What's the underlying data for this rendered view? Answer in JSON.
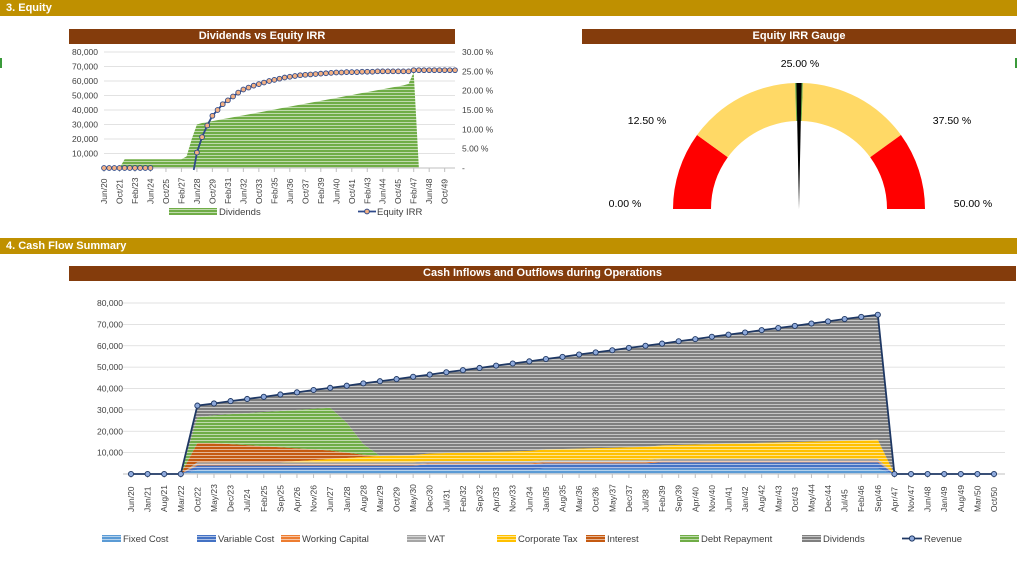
{
  "sections": {
    "equity": "3.  Equity",
    "cashflow": "4.  Cash Flow Summary"
  },
  "chart_data": [
    {
      "type": "bar+line",
      "title": "Dividends vs Equity IRR",
      "tick_labels": [
        "Jun/20",
        "Oct/21",
        "Feb/23",
        "Jun/24",
        "Oct/25",
        "Feb/27",
        "Jun/28",
        "Oct/29",
        "Feb/31",
        "Jun/32",
        "Oct/33",
        "Feb/35",
        "Jun/36",
        "Oct/37",
        "Feb/39",
        "Jun/40",
        "Oct/41",
        "Feb/43",
        "Jun/44",
        "Oct/45",
        "Feb/47",
        "Jun/48",
        "Oct/49"
      ],
      "points_per_tick": 3,
      "y_left": {
        "range": [
          0,
          80000
        ],
        "ticks": [
          "",
          "10,000",
          "20,000",
          "30,000",
          "40,000",
          "50,000",
          "60,000",
          "70,000",
          "80,000"
        ]
      },
      "y_right": {
        "range": [
          0,
          30
        ],
        "ticks": [
          "-",
          "5.00 %",
          "10.00 %",
          "15.00 %",
          "20.00 %",
          "25.00 %",
          "30.00 %"
        ]
      },
      "legend_position": "bottom",
      "series": [
        {
          "name": "Dividends",
          "kind": "area",
          "color": "#70ad47",
          "values": [
            0,
            0,
            0,
            0,
            6000,
            6000,
            6000,
            6000,
            6000,
            6000,
            6000,
            6000,
            6000,
            6000,
            6000,
            6000,
            8000,
            20000,
            30000,
            31000,
            31700,
            32300,
            33000,
            33700,
            34300,
            35000,
            35700,
            36300,
            37000,
            37700,
            38300,
            39000,
            39700,
            40300,
            41000,
            41700,
            42300,
            43000,
            43700,
            44300,
            45000,
            45700,
            46300,
            47000,
            47700,
            48300,
            49000,
            49700,
            50300,
            51000,
            51700,
            52300,
            53000,
            53700,
            54300,
            55000,
            55700,
            56300,
            57000,
            58000,
            66000,
            0,
            0,
            0,
            0,
            0,
            0,
            0,
            0
          ]
        },
        {
          "name": "Equity IRR",
          "kind": "line",
          "color": "#2f4a8a",
          "marker_color": "#f4b183",
          "values": [
            0,
            0,
            0,
            0,
            0,
            0,
            0,
            0,
            0,
            0,
            null,
            null,
            null,
            null,
            null,
            null,
            null,
            null,
            4,
            8,
            11,
            13.5,
            15,
            16.5,
            17.5,
            18.5,
            19.5,
            20.3,
            20.8,
            21.3,
            21.7,
            22.1,
            22.5,
            22.8,
            23.1,
            23.4,
            23.6,
            23.8,
            24.0,
            24.1,
            24.2,
            24.3,
            24.4,
            24.5,
            24.6,
            24.7,
            24.7,
            24.8,
            24.8,
            24.8,
            24.9,
            24.9,
            24.9,
            25.0,
            25.0,
            25.0,
            25.0,
            25.0,
            25.0,
            25.0,
            25.3,
            25.3,
            25.3,
            25.3,
            25.3,
            25.3,
            25.3,
            25.3,
            25.3
          ]
        }
      ]
    },
    {
      "type": "gauge",
      "title": "Equity IRR Gauge",
      "range": [
        0,
        50
      ],
      "value": 25,
      "labels": [
        "0.00 %",
        "12.50 %",
        "25.00 %",
        "37.50 %",
        "50.00 %"
      ],
      "bands": [
        {
          "from": 0,
          "to": 10,
          "color": "#ff0000"
        },
        {
          "from": 10,
          "to": 24.5,
          "color": "#ffd966"
        },
        {
          "from": 24.5,
          "to": 25.5,
          "color": "#70ad47"
        },
        {
          "from": 25.5,
          "to": 40,
          "color": "#ffd966"
        },
        {
          "from": 40,
          "to": 50,
          "color": "#ff0000"
        }
      ]
    },
    {
      "type": "area",
      "stacked": true,
      "title": "Cash Inflows and Outflows during Operations",
      "categories": [
        "Jun/20",
        "Jan/21",
        "Aug/21",
        "Mar/22",
        "Oct/22",
        "May/23",
        "Dec/23",
        "Jul/24",
        "Feb/25",
        "Sep/25",
        "Apr/26",
        "Nov/26",
        "Jun/27",
        "Jan/28",
        "Aug/28",
        "Mar/29",
        "Oct/29",
        "May/30",
        "Dec/30",
        "Jul/31",
        "Feb/32",
        "Sep/32",
        "Apr/33",
        "Nov/33",
        "Jun/34",
        "Jan/35",
        "Aug/35",
        "Mar/36",
        "Oct/36",
        "May/37",
        "Dec/37",
        "Jul/38",
        "Feb/39",
        "Sep/39",
        "Apr/40",
        "Nov/40",
        "Jun/41",
        "Jan/42",
        "Aug/42",
        "Mar/43",
        "Oct/43",
        "May/44",
        "Dec/44",
        "Jul/45",
        "Feb/46",
        "Sep/46",
        "Apr/47",
        "Nov/47",
        "Jun/48",
        "Jan/49",
        "Aug/49",
        "Mar/50",
        "Oct/50"
      ],
      "y": {
        "range": [
          0,
          80000
        ],
        "ticks": [
          "",
          "10,000",
          "20,000",
          "30,000",
          "40,000",
          "50,000",
          "60,000",
          "70,000",
          "80,000"
        ]
      },
      "legend_position": "bottom",
      "series": [
        {
          "name": "Fixed Cost",
          "color": "#5b9bd5",
          "values": [
            0,
            0,
            0,
            0,
            2000,
            2000,
            2000,
            2000,
            2000,
            2000,
            2000,
            2000,
            2000,
            2000,
            2000,
            2000,
            2000,
            2000,
            2000,
            2000,
            2000,
            2000,
            2000,
            2000,
            2000,
            2500,
            2500,
            2500,
            2500,
            2500,
            2500,
            2500,
            2500,
            2500,
            2500,
            2500,
            2500,
            2500,
            2500,
            2500,
            2500,
            2500,
            2500,
            2500,
            2500,
            2500,
            0,
            0,
            0,
            0,
            0,
            0,
            0
          ]
        },
        {
          "name": "Variable Cost",
          "color": "#4472c4",
          "values": [
            0,
            0,
            0,
            0,
            2000,
            2000,
            2000,
            2000,
            2000,
            2000,
            2000,
            2000,
            2000,
            2000,
            2000,
            2000,
            2000,
            2000,
            2500,
            2500,
            2500,
            2500,
            2500,
            2500,
            2500,
            2500,
            2500,
            2500,
            2500,
            2500,
            2500,
            2500,
            3000,
            3000,
            3000,
            3000,
            3000,
            3000,
            3000,
            3000,
            3000,
            3000,
            3000,
            3000,
            3000,
            3000,
            0,
            0,
            0,
            0,
            0,
            0,
            0
          ]
        },
        {
          "name": "Working Capital",
          "color": "#ed7d31",
          "values": [
            0,
            0,
            0,
            0,
            500,
            500,
            500,
            500,
            500,
            500,
            500,
            500,
            500,
            500,
            500,
            500,
            500,
            500,
            500,
            500,
            500,
            500,
            500,
            500,
            500,
            500,
            500,
            500,
            500,
            500,
            500,
            500,
            500,
            500,
            500,
            500,
            500,
            500,
            500,
            500,
            500,
            500,
            500,
            500,
            500,
            500,
            0,
            0,
            0,
            0,
            0,
            0,
            0
          ]
        },
        {
          "name": "VAT",
          "color": "#a5a5a5",
          "values": [
            0,
            0,
            0,
            0,
            1000,
            1000,
            1000,
            1000,
            1000,
            1000,
            1000,
            1000,
            1000,
            1000,
            1000,
            1000,
            1000,
            1000,
            1000,
            1000,
            1000,
            1000,
            1000,
            1000,
            1000,
            1000,
            1000,
            1000,
            1000,
            1000,
            1000,
            1000,
            1000,
            1000,
            1000,
            1000,
            1000,
            1000,
            1000,
            1000,
            1000,
            1000,
            1000,
            1000,
            1000,
            1000,
            0,
            0,
            0,
            0,
            0,
            0,
            0
          ]
        },
        {
          "name": "Corporate Tax",
          "color": "#ffc000",
          "values": [
            0,
            0,
            0,
            0,
            0,
            0,
            0,
            0,
            0,
            0,
            500,
            1000,
            1500,
            2000,
            2500,
            3000,
            3200,
            3400,
            3600,
            3800,
            4000,
            4200,
            4400,
            4600,
            4800,
            5000,
            5200,
            5400,
            5600,
            5800,
            6000,
            6200,
            6400,
            6600,
            6800,
            7000,
            7200,
            7400,
            7600,
            7800,
            8000,
            8200,
            8400,
            8600,
            8800,
            9000,
            0,
            0,
            0,
            0,
            0,
            0,
            0
          ]
        },
        {
          "name": "Interest",
          "color": "#c55a11",
          "values": [
            0,
            0,
            0,
            0,
            9000,
            9000,
            8500,
            8000,
            7500,
            7000,
            6000,
            5000,
            4000,
            2500,
            1000,
            0,
            0,
            0,
            0,
            0,
            0,
            0,
            0,
            0,
            0,
            0,
            0,
            0,
            0,
            0,
            0,
            0,
            0,
            0,
            0,
            0,
            0,
            0,
            0,
            0,
            0,
            0,
            0,
            0,
            0,
            0,
            0,
            0,
            0,
            0,
            0,
            0,
            0
          ]
        },
        {
          "name": "Debt Repayment",
          "color": "#70ad47",
          "values": [
            0,
            0,
            0,
            0,
            12000,
            13000,
            14000,
            15000,
            16000,
            17000,
            18000,
            19000,
            20000,
            14000,
            5000,
            0,
            0,
            0,
            0,
            0,
            0,
            0,
            0,
            0,
            0,
            0,
            0,
            0,
            0,
            0,
            0,
            0,
            0,
            0,
            0,
            0,
            0,
            0,
            0,
            0,
            0,
            0,
            0,
            0,
            0,
            0,
            0,
            0,
            0,
            0,
            0,
            0,
            0
          ]
        },
        {
          "name": "Dividends",
          "color": "#7f7f7f",
          "values": [
            0,
            0,
            0,
            0,
            5500,
            5500,
            6100,
            6600,
            7100,
            7700,
            8200,
            8800,
            9300,
            17300,
            28400,
            34900,
            35700,
            36600,
            36900,
            37800,
            38600,
            39400,
            40300,
            41100,
            41900,
            42300,
            43100,
            44000,
            44800,
            45600,
            46500,
            47300,
            47600,
            48500,
            49300,
            50200,
            51000,
            51800,
            52700,
            53500,
            54300,
            55200,
            56000,
            56900,
            57700,
            58500,
            0,
            0,
            0,
            0,
            0,
            0,
            0
          ]
        },
        {
          "name": "Revenue",
          "kind": "line",
          "color": "#1f3864",
          "marker_color": "#8faadc",
          "values": [
            0,
            0,
            0,
            0,
            32000,
            33000,
            34100,
            35100,
            36100,
            37200,
            38200,
            39300,
            40300,
            41300,
            42400,
            43400,
            44400,
            45500,
            46500,
            47600,
            48600,
            49600,
            50700,
            51700,
            52700,
            53800,
            54800,
            55900,
            56900,
            57900,
            59000,
            60000,
            61000,
            62100,
            63100,
            64200,
            65200,
            66200,
            67300,
            68300,
            69300,
            70400,
            71400,
            72500,
            73500,
            74500,
            0,
            0,
            0,
            0,
            0,
            0,
            0
          ]
        }
      ]
    }
  ]
}
